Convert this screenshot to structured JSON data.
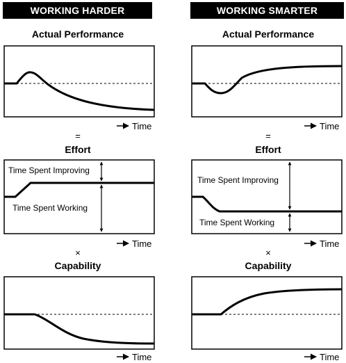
{
  "left_column": {
    "header": "WORKING HARDER",
    "performance_title": "Actual Performance",
    "equals": "=",
    "effort_title": "Effort",
    "improving_label": "Time Spent Improving",
    "working_label": "Time Spent Working",
    "times": "×",
    "capability_title": "Capability"
  },
  "right_column": {
    "header": "WORKING SMARTER",
    "performance_title": "Actual Performance",
    "equals": "=",
    "effort_title": "Effort",
    "improving_label": "Time Spent Improving",
    "working_label": "Time Spent Working",
    "times": "×",
    "capability_title": "Capability"
  },
  "time_label": "Time",
  "colors": {
    "ink": "#000000",
    "background": "#ffffff",
    "header_text": "#ffffff"
  }
}
